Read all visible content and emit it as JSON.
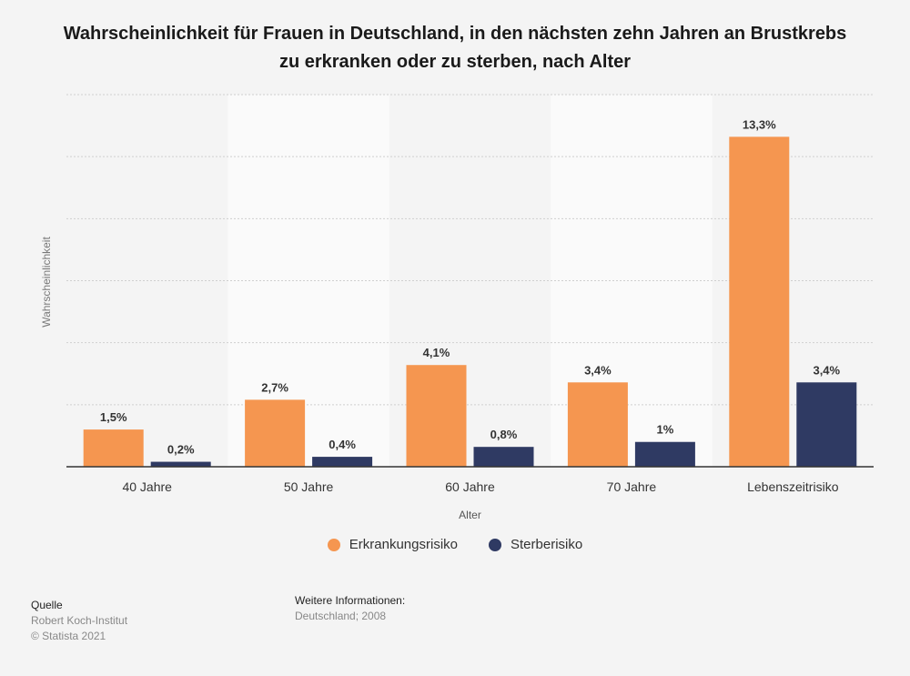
{
  "chart_data": {
    "type": "bar",
    "title": "Wahrscheinlichkeit für Frauen in Deutschland, in den nächsten zehn Jahren an Brustkrebs zu erkranken oder zu sterben, nach Alter",
    "xlabel": "Alter",
    "ylabel": "Wahrscheinlichkeit",
    "categories": [
      "40 Jahre",
      "50 Jahre",
      "60 Jahre",
      "70 Jahre",
      "Lebenszeitrisiko"
    ],
    "series": [
      {
        "name": "Erkrankungsrisiko",
        "color": "#f59650",
        "values": [
          1.5,
          2.7,
          4.1,
          3.4,
          13.3
        ],
        "labels": [
          "1,5%",
          "2,7%",
          "4,1%",
          "3,4%",
          "13,3%"
        ]
      },
      {
        "name": "Sterberisiko",
        "color": "#2f3a63",
        "values": [
          0.2,
          0.4,
          0.8,
          1.0,
          3.4
        ],
        "labels": [
          "0,2%",
          "0,4%",
          "0,8%",
          "1%",
          "3,4%"
        ]
      }
    ],
    "ylim": [
      0,
      15
    ],
    "grid": true,
    "legend": "bottom-center"
  },
  "source": {
    "heading": "Quelle",
    "name": "Robert Koch-Institut",
    "copyright": "© Statista 2021"
  },
  "info": {
    "heading": "Weitere Informationen:",
    "text": "Deutschland; 2008"
  }
}
